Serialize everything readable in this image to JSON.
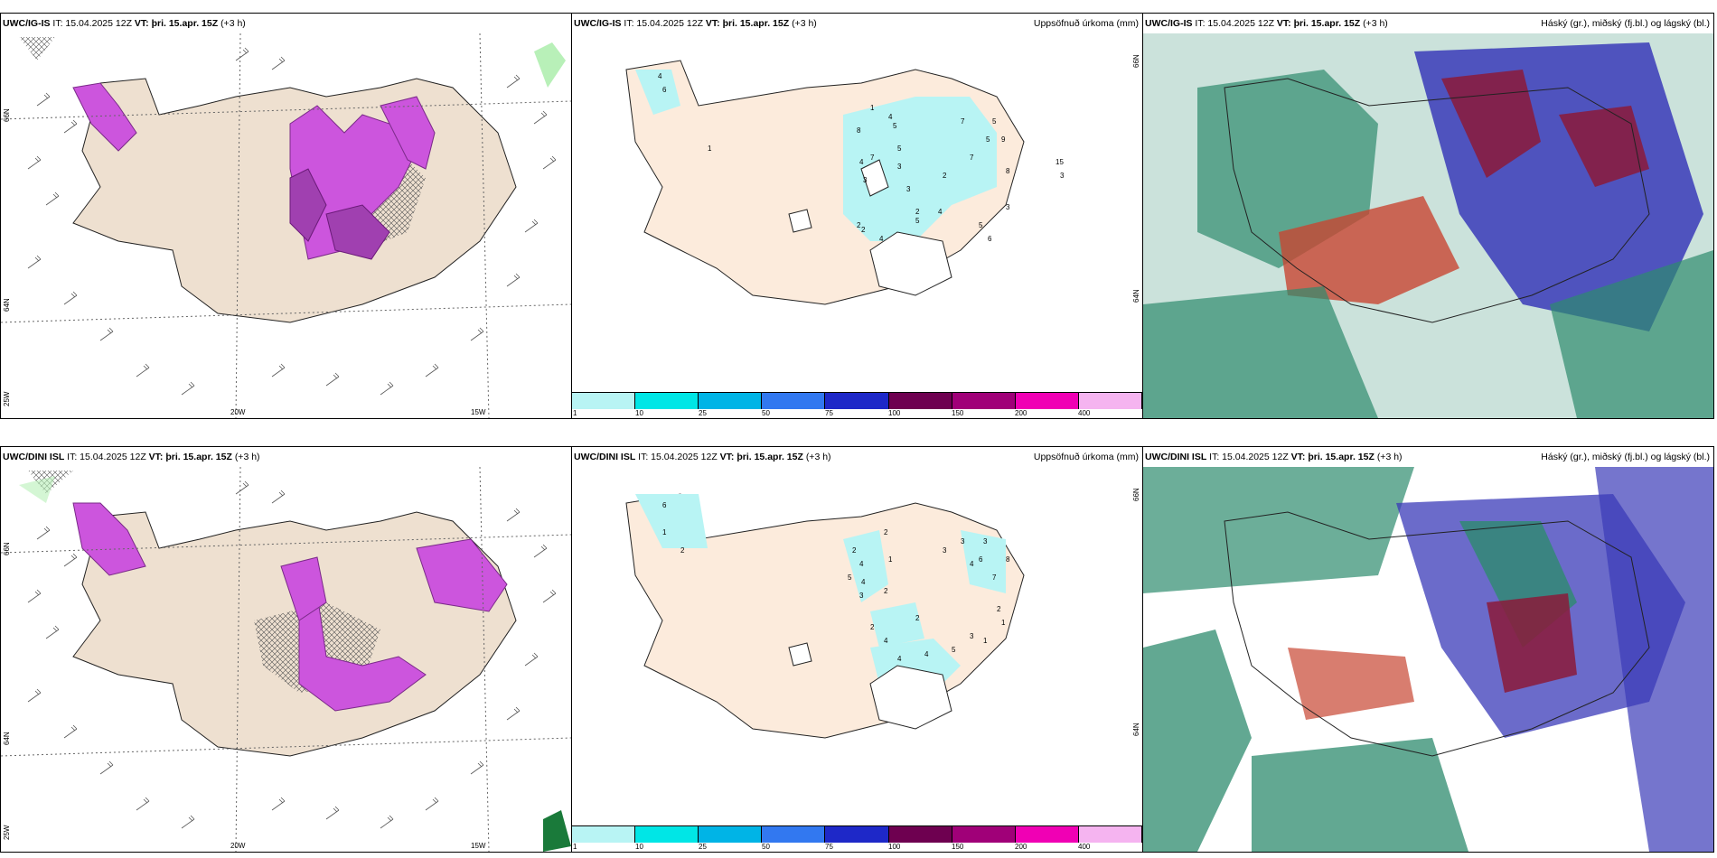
{
  "panels": {
    "top_left": {
      "model": "UWC/IG-IS",
      "it": "IT: 15.04.2025 12Z",
      "vt_label": "VT:",
      "vt_value": "þri. 15.apr. 15Z",
      "lead": "(+3 h)"
    },
    "top_mid": {
      "model": "UWC/IG-IS",
      "it": "IT: 15.04.2025 12Z",
      "vt_label": "VT:",
      "vt_value": "þri. 15.apr. 15Z",
      "lead": "(+3 h)",
      "right_title": "Uppsöfnuð úrkoma (mm)"
    },
    "top_right": {
      "model": "UWC/IG-IS",
      "it": "IT: 15.04.2025 12Z",
      "vt_label": "VT:",
      "vt_value": "þri. 15.apr. 15Z",
      "lead": "(+3 h)",
      "right_title": "Háský (gr.), miðský (fj.bl.) og lágský (bl.)"
    },
    "bot_left": {
      "model": "UWC/DINI ISL",
      "it": "IT: 15.04.2025 12Z",
      "vt_label": "VT:",
      "vt_value": "þri. 15.apr. 15Z",
      "lead": "(+3 h)"
    },
    "bot_mid": {
      "model": "UWC/DINI ISL",
      "it": "IT: 15.04.2025 12Z",
      "vt_label": "VT:",
      "vt_value": "þri. 15.apr. 15Z",
      "lead": "(+3 h)",
      "right_title": "Uppsöfnuð úrkoma (mm)"
    },
    "bot_right": {
      "model": "UWC/DINI ISL",
      "it": "IT: 15.04.2025 12Z",
      "vt_label": "VT:",
      "vt_value": "þri. 15.apr. 15Z",
      "lead": "(+3 h)",
      "right_title": "Háský (gr.), miðský (fj.bl.) og lágský (bl.)"
    }
  },
  "axes": {
    "lat_66": "66N",
    "lat_64": "64N",
    "lon_25": "25W",
    "lon_20": "20W",
    "lon_15": "15W"
  },
  "colorbar": {
    "ticks": [
      "1",
      "10",
      "25",
      "50",
      "75",
      "100",
      "150",
      "200",
      "400"
    ],
    "colors": [
      "#b8f4f4",
      "#00e6e6",
      "#00b4e6",
      "#3278f0",
      "#1e28c8",
      "#6e0050",
      "#a00078",
      "#f000b4",
      "#f5b4f0"
    ]
  },
  "precip_labels_top": [
    "6",
    "4",
    "1",
    "8",
    "7",
    "4",
    "3",
    "4",
    "1",
    "5",
    "5",
    "3",
    "3",
    "2",
    "2",
    "4",
    "2",
    "5",
    "7",
    "5",
    "9",
    "7",
    "5",
    "8",
    "15",
    "3",
    "3",
    "5",
    "6",
    "2",
    "4"
  ],
  "precip_labels_bot": [
    "6",
    "1",
    "2",
    "2",
    "4",
    "2",
    "1",
    "4",
    "3",
    "5",
    "3",
    "4",
    "2",
    "3",
    "3",
    "6",
    "7",
    "8",
    "4",
    "2",
    "2",
    "5",
    "3",
    "1",
    "1",
    "2",
    "4",
    "4"
  ],
  "cloud_legend_colors": {
    "high": "#2e8b6e",
    "mid": "#3a3ab8",
    "low": "#8b1a3a"
  }
}
